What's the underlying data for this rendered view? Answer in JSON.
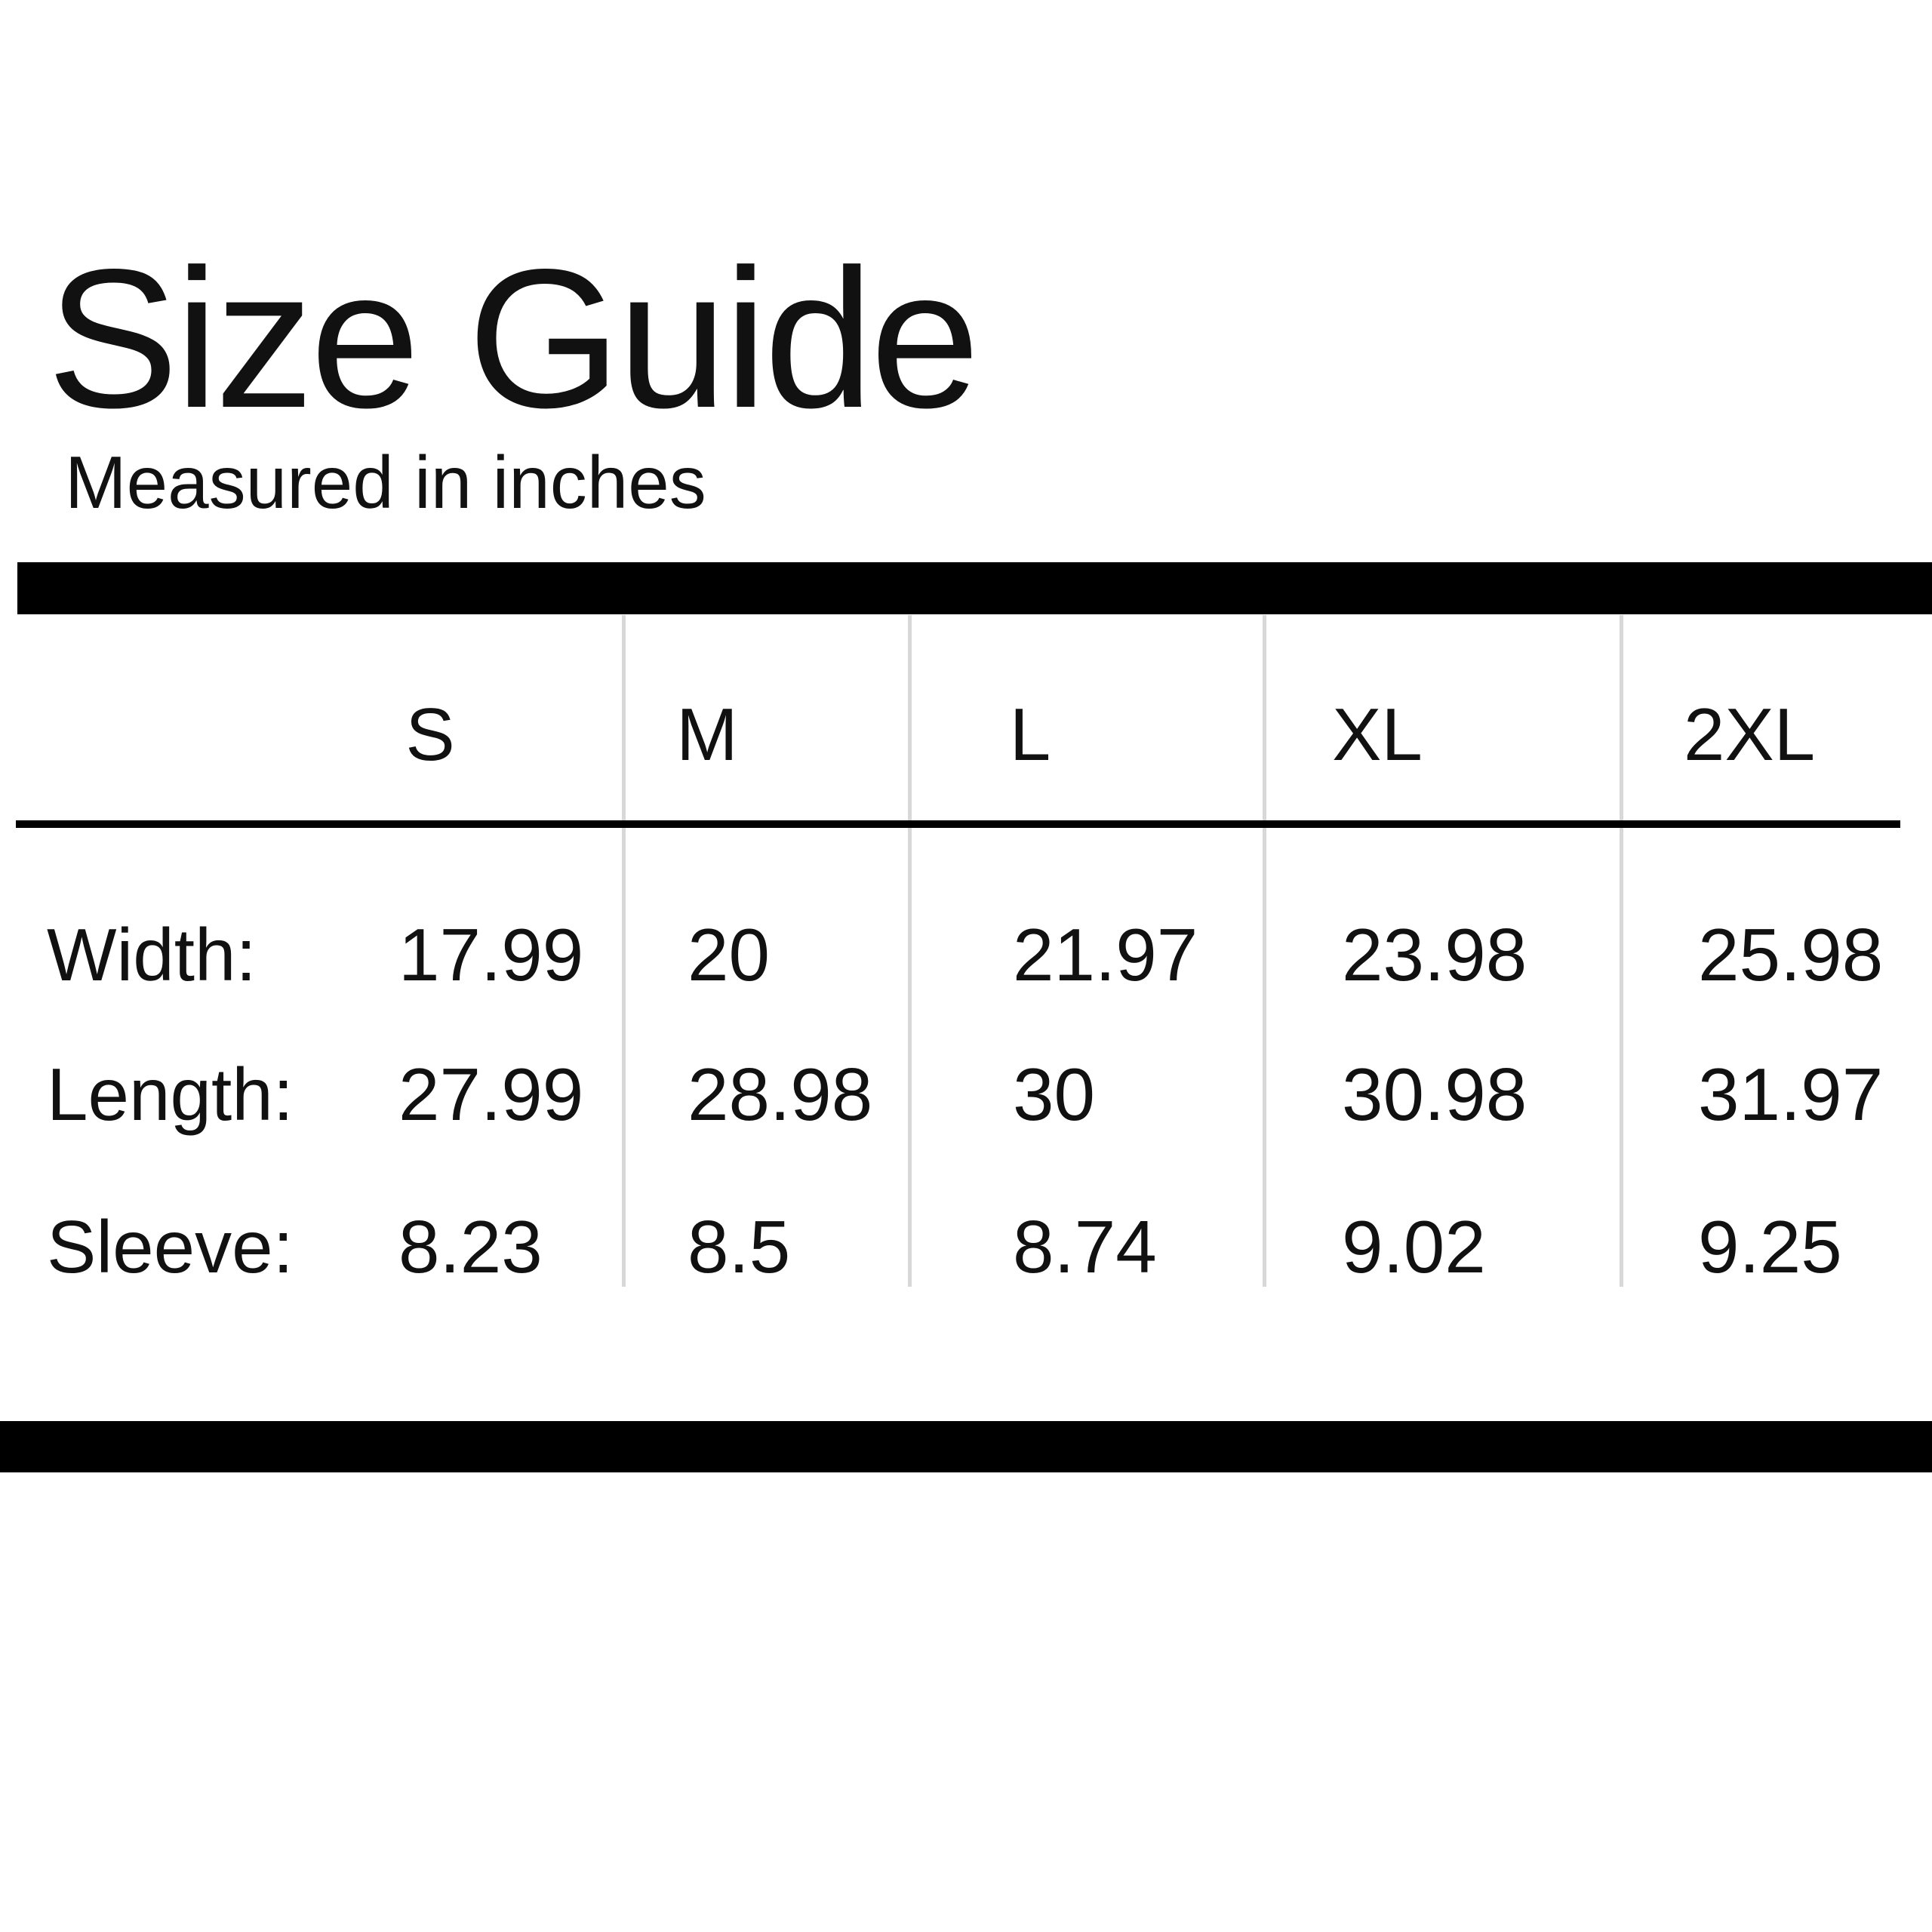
{
  "title": "Size Guide",
  "subtitle": "Measured in inches",
  "table": {
    "columns": [
      "S",
      "M",
      "L",
      "XL",
      "2XL"
    ],
    "rows": [
      {
        "label": "Width:",
        "values": [
          "17.99",
          "20",
          "21.97",
          "23.98",
          "25.98"
        ]
      },
      {
        "label": "Length:",
        "values": [
          "27.99",
          "28.98",
          "30",
          "30.98",
          "31.97"
        ]
      },
      {
        "label": "Sleeve:",
        "values": [
          "8.23",
          "8.5",
          "8.74",
          "9.02",
          "9.25"
        ]
      }
    ]
  },
  "colors": {
    "bar": "#000000",
    "divider": "#d8d8d8",
    "text": "#111111",
    "underline": "#000000"
  }
}
